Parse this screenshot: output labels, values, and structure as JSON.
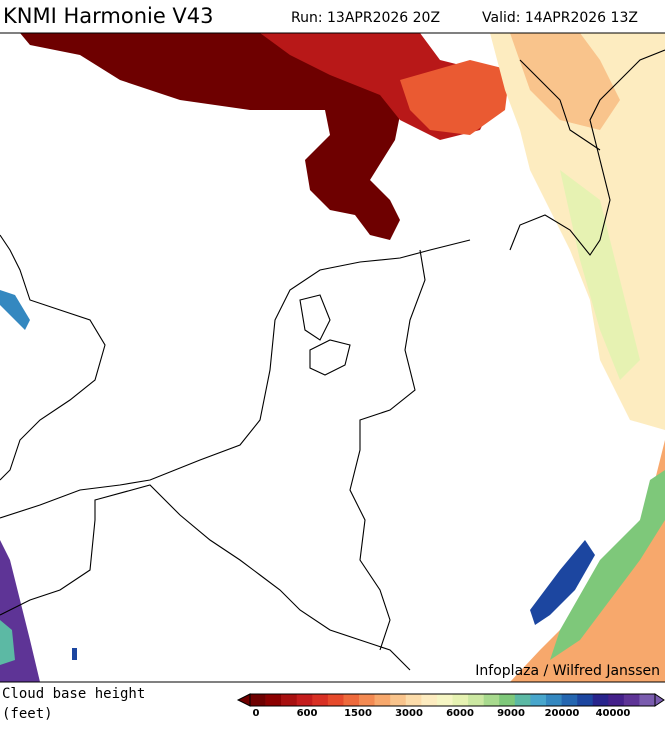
{
  "header": {
    "title": "KNMI Harmonie V43",
    "run": "Run: 13APR2026 20Z",
    "valid": "Valid: 14APR2026 13Z"
  },
  "map": {
    "credit": "Infoplaza / Wilfred Janssen"
  },
  "legend": {
    "title_lines": [
      "Cloud base height",
      "(feet)"
    ],
    "labels": [
      "0",
      "600",
      "1500",
      "3000",
      "6000",
      "9000",
      "20000",
      "40000"
    ],
    "colors": [
      "#6e0000",
      "#8b0000",
      "#a81010",
      "#c41c1c",
      "#d83024",
      "#e64a2c",
      "#ee6a3c",
      "#f38a52",
      "#f7a86c",
      "#f9c48c",
      "#fcdcaa",
      "#fdecc0",
      "#f6f6c4",
      "#e6f2b2",
      "#cce8a2",
      "#a8da8e",
      "#7ec87a",
      "#5cb9a4",
      "#48a6cc",
      "#3488c0",
      "#2466b0",
      "#1c46a0",
      "#28248c",
      "#44208a",
      "#5e3496",
      "#7a5cae"
    ]
  }
}
